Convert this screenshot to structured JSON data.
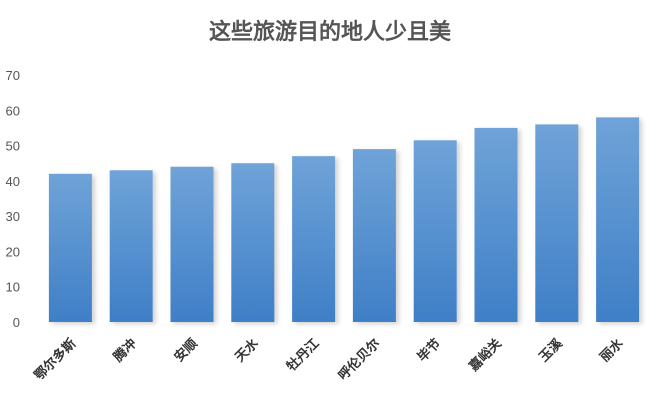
{
  "chart_data": {
    "type": "bar",
    "title": "这些旅游目的地人少且美",
    "categories": [
      "鄂尔多斯",
      "腾冲",
      "安顺",
      "天水",
      "牡丹江",
      "呼伦贝尔",
      "毕节",
      "嘉峪关",
      "玉溪",
      "丽水"
    ],
    "values": [
      42,
      43,
      44,
      45,
      47,
      49,
      51.5,
      55,
      56,
      58
    ],
    "ylim": [
      0,
      70
    ],
    "yticks": [
      0,
      10,
      20,
      30,
      40,
      50,
      60,
      70
    ],
    "xlabel": "",
    "ylabel": "",
    "grid": false,
    "legend": "none",
    "bar_color_top": "#6fa3d8",
    "bar_color_bottom": "#3f7fc7"
  }
}
